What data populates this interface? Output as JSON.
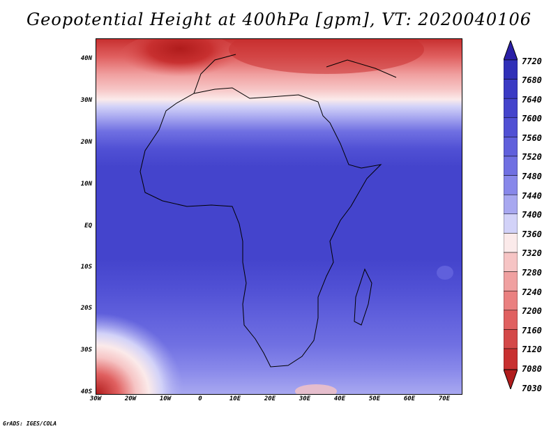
{
  "title": "Geopotential Height at 400hPa [gpm], VT: 2020040106",
  "credit": "GrADS: IGES/COLA",
  "map": {
    "region": "Africa",
    "lat_range": [
      -40,
      45
    ],
    "lon_range": [
      -30,
      75
    ],
    "lat_labels": [
      "40N",
      "30N",
      "20N",
      "10N",
      "EQ",
      "10S",
      "20S",
      "30S",
      "40S"
    ],
    "lat_values": [
      40,
      30,
      20,
      10,
      0,
      -10,
      -20,
      -30,
      -40
    ],
    "lon_labels": [
      "30W",
      "20W",
      "10W",
      "0",
      "10E",
      "20E",
      "30E",
      "40E",
      "50E",
      "60E",
      "70E"
    ],
    "lon_values": [
      -30,
      -20,
      -10,
      0,
      10,
      20,
      30,
      40,
      50,
      60,
      70
    ]
  },
  "colorbar": {
    "labels": [
      "7720",
      "7680",
      "7640",
      "7600",
      "7560",
      "7520",
      "7480",
      "7440",
      "7400",
      "7360",
      "7320",
      "7280",
      "7240",
      "7200",
      "7160",
      "7120",
      "7080",
      "7030"
    ],
    "colors": [
      "#2a1fa6",
      "#3030b8",
      "#3a3ac4",
      "#4444cc",
      "#5050d4",
      "#6060dc",
      "#7070e2",
      "#8888ea",
      "#a8a8f0",
      "#d2d2f8",
      "#fbeaea",
      "#f6c4c4",
      "#f0a0a0",
      "#ea8080",
      "#e06060",
      "#d44848",
      "#c83030",
      "#b01c1c"
    ]
  },
  "chart_data": {
    "type": "heatmap",
    "title": "Geopotential Height at 400hPa [gpm], VT: 2020040106",
    "variable": "Geopotential Height",
    "level": "400hPa",
    "units": "gpm",
    "valid_time": "2020040106",
    "x": [
      "30W",
      "20W",
      "10W",
      "0",
      "10E",
      "20E",
      "30E",
      "40E",
      "50E",
      "60E",
      "70E"
    ],
    "y": [
      "40N",
      "30N",
      "20N",
      "10N",
      "EQ",
      "10S",
      "20S",
      "30S",
      "40S"
    ],
    "contour_levels": [
      7030,
      7080,
      7120,
      7160,
      7200,
      7240,
      7280,
      7320,
      7360,
      7400,
      7440,
      7480,
      7520,
      7560,
      7600,
      7640,
      7680,
      7720
    ],
    "approx_pattern": [
      {
        "lat": 40,
        "approx_gpm": 7200
      },
      {
        "lat": 35,
        "approx_gpm": 7300
      },
      {
        "lat": 30,
        "approx_gpm": 7400
      },
      {
        "lat": 25,
        "approx_gpm": 7520
      },
      {
        "lat": 20,
        "approx_gpm": 7600
      },
      {
        "lat": 10,
        "approx_gpm": 7620
      },
      {
        "lat": 0,
        "approx_gpm": 7600
      },
      {
        "lat": -10,
        "approx_gpm": 7600
      },
      {
        "lat": -20,
        "approx_gpm": 7560
      },
      {
        "lat": -30,
        "approx_gpm": 7480
      },
      {
        "lat": -40,
        "approx_gpm": 7360
      }
    ]
  }
}
